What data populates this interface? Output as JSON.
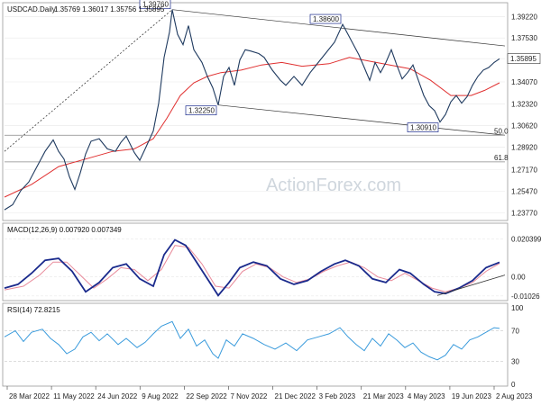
{
  "chart_data": {
    "type": "line",
    "symbol": "USDCAD",
    "timeframe": "Daily",
    "header": {
      "instrument": "USDCAD.Daily",
      "ohlc": "1.35769 1.36017 1.35756 1.35895"
    },
    "watermark": "ActionForex.com",
    "last_price_label": "1.35895",
    "x_axis": {
      "labels": [
        "28 Mar 2022",
        "11 May 2022",
        "24 Jun 2022",
        "9 Aug 2022",
        "22 Sep 2022",
        "7 Nov 2022",
        "21 Dec 2022",
        "3 Feb 2023",
        "21 Mar 2023",
        "4 May 2023",
        "19 Jun 2023",
        "2 Aug 2023"
      ],
      "total_bars": 370
    },
    "price_panel": {
      "y_ticks": [
        "1.39220",
        "1.37530",
        "1.35895",
        "1.34070",
        "1.32320",
        "1.30620",
        "1.28920",
        "1.27170",
        "1.25470",
        "1.23770"
      ],
      "ylim": [
        1.233,
        1.3995
      ],
      "annotations": [
        {
          "text": "1.39760",
          "bar": 124,
          "price": 1.3976
        },
        {
          "text": "1.38600",
          "bar": 250,
          "price": 1.386
        },
        {
          "text": "1.32250",
          "bar": 158,
          "price": 1.3225
        },
        {
          "text": "1.30910",
          "bar": 322,
          "price": 1.3091
        }
      ],
      "fib_levels": [
        {
          "text": "50.0",
          "price": 1.2987
        },
        {
          "text": "61.8",
          "price": 1.2777
        }
      ],
      "price_path": [
        [
          0,
          1.24
        ],
        [
          6,
          1.244
        ],
        [
          12,
          1.255
        ],
        [
          18,
          1.262
        ],
        [
          24,
          1.274
        ],
        [
          30,
          1.286
        ],
        [
          36,
          1.295
        ],
        [
          40,
          1.286
        ],
        [
          44,
          1.28
        ],
        [
          48,
          1.266
        ],
        [
          52,
          1.256
        ],
        [
          56,
          1.269
        ],
        [
          60,
          1.284
        ],
        [
          64,
          1.294
        ],
        [
          70,
          1.296
        ],
        [
          76,
          1.288
        ],
        [
          82,
          1.286
        ],
        [
          86,
          1.293
        ],
        [
          90,
          1.298
        ],
        [
          96,
          1.285
        ],
        [
          100,
          1.279
        ],
        [
          104,
          1.288
        ],
        [
          110,
          1.302
        ],
        [
          114,
          1.324
        ],
        [
          118,
          1.36
        ],
        [
          122,
          1.38
        ],
        [
          124,
          1.3976
        ],
        [
          128,
          1.378
        ],
        [
          132,
          1.37
        ],
        [
          136,
          1.385
        ],
        [
          140,
          1.366
        ],
        [
          146,
          1.356
        ],
        [
          150,
          1.345
        ],
        [
          154,
          1.336
        ],
        [
          158,
          1.3225
        ],
        [
          162,
          1.345
        ],
        [
          166,
          1.352
        ],
        [
          170,
          1.338
        ],
        [
          174,
          1.358
        ],
        [
          178,
          1.366
        ],
        [
          182,
          1.365
        ],
        [
          188,
          1.363
        ],
        [
          192,
          1.36
        ],
        [
          198,
          1.35
        ],
        [
          204,
          1.342
        ],
        [
          208,
          1.338
        ],
        [
          214,
          1.345
        ],
        [
          220,
          1.338
        ],
        [
          226,
          1.348
        ],
        [
          232,
          1.356
        ],
        [
          238,
          1.364
        ],
        [
          244,
          1.372
        ],
        [
          250,
          1.386
        ],
        [
          254,
          1.378
        ],
        [
          258,
          1.37
        ],
        [
          262,
          1.362
        ],
        [
          266,
          1.352
        ],
        [
          270,
          1.342
        ],
        [
          274,
          1.356
        ],
        [
          278,
          1.348
        ],
        [
          282,
          1.356
        ],
        [
          286,
          1.366
        ],
        [
          290,
          1.354
        ],
        [
          294,
          1.343
        ],
        [
          298,
          1.348
        ],
        [
          302,
          1.354
        ],
        [
          306,
          1.342
        ],
        [
          310,
          1.33
        ],
        [
          314,
          1.322
        ],
        [
          318,
          1.318
        ],
        [
          322,
          1.3091
        ],
        [
          326,
          1.315
        ],
        [
          330,
          1.325
        ],
        [
          334,
          1.33
        ],
        [
          338,
          1.324
        ],
        [
          342,
          1.329
        ],
        [
          346,
          1.338
        ],
        [
          350,
          1.345
        ],
        [
          354,
          1.35
        ],
        [
          358,
          1.352
        ],
        [
          362,
          1.356
        ],
        [
          366,
          1.3589
        ]
      ],
      "ma_path": [
        [
          0,
          1.25
        ],
        [
          20,
          1.26
        ],
        [
          40,
          1.274
        ],
        [
          60,
          1.28
        ],
        [
          80,
          1.286
        ],
        [
          96,
          1.288
        ],
        [
          110,
          1.296
        ],
        [
          120,
          1.312
        ],
        [
          130,
          1.33
        ],
        [
          140,
          1.34
        ],
        [
          150,
          1.345
        ],
        [
          160,
          1.348
        ],
        [
          175,
          1.35
        ],
        [
          190,
          1.354
        ],
        [
          205,
          1.356
        ],
        [
          220,
          1.353
        ],
        [
          240,
          1.355
        ],
        [
          255,
          1.36
        ],
        [
          270,
          1.357
        ],
        [
          285,
          1.354
        ],
        [
          300,
          1.351
        ],
        [
          315,
          1.342
        ],
        [
          330,
          1.33
        ],
        [
          345,
          1.33
        ],
        [
          355,
          1.334
        ],
        [
          366,
          1.34
        ]
      ],
      "channel_lines": [
        {
          "from": [
            124,
            1.3976
          ],
          "to": [
            370,
            1.369
          ]
        },
        {
          "from": [
            158,
            1.3225
          ],
          "to": [
            370,
            1.2987
          ]
        }
      ],
      "trend_line": {
        "from": [
          0,
          1.286
        ],
        "to": [
          124,
          1.3976
        ]
      }
    },
    "macd_panel": {
      "title": "MACD(12,26,9) 0.007920 0.007349",
      "y_ticks": [
        "0.020399",
        "0.00",
        "-0.01026"
      ],
      "ylim": [
        -0.0118,
        0.0222
      ],
      "macd_path": [
        [
          0,
          -0.006
        ],
        [
          10,
          -0.004
        ],
        [
          20,
          0.002
        ],
        [
          30,
          0.009
        ],
        [
          40,
          0.01
        ],
        [
          50,
          0.003
        ],
        [
          60,
          -0.008
        ],
        [
          70,
          -0.003
        ],
        [
          80,
          0.005
        ],
        [
          90,
          0.007
        ],
        [
          100,
          -0.001
        ],
        [
          110,
          -0.005
        ],
        [
          118,
          0.012
        ],
        [
          126,
          0.02
        ],
        [
          134,
          0.017
        ],
        [
          142,
          0.008
        ],
        [
          150,
          -0.001
        ],
        [
          158,
          -0.01
        ],
        [
          166,
          -0.003
        ],
        [
          174,
          0.005
        ],
        [
          184,
          0.008
        ],
        [
          194,
          0.006
        ],
        [
          204,
          -0.001
        ],
        [
          214,
          -0.004
        ],
        [
          224,
          -0.002
        ],
        [
          234,
          0.003
        ],
        [
          244,
          0.007
        ],
        [
          252,
          0.009
        ],
        [
          262,
          0.006
        ],
        [
          272,
          -0.001
        ],
        [
          282,
          -0.003
        ],
        [
          292,
          0.004
        ],
        [
          300,
          0.002
        ],
        [
          310,
          -0.004
        ],
        [
          318,
          -0.008
        ],
        [
          326,
          -0.009
        ],
        [
          336,
          -0.006
        ],
        [
          346,
          -0.002
        ],
        [
          356,
          0.005
        ],
        [
          366,
          0.0079
        ]
      ],
      "signal_path": [
        [
          0,
          -0.007
        ],
        [
          14,
          -0.005
        ],
        [
          26,
          0.001
        ],
        [
          36,
          0.008
        ],
        [
          46,
          0.008
        ],
        [
          56,
          0.001
        ],
        [
          66,
          -0.006
        ],
        [
          76,
          -0.001
        ],
        [
          86,
          0.005
        ],
        [
          96,
          0.004
        ],
        [
          106,
          -0.002
        ],
        [
          116,
          0.004
        ],
        [
          126,
          0.017
        ],
        [
          136,
          0.016
        ],
        [
          146,
          0.007
        ],
        [
          156,
          -0.005
        ],
        [
          166,
          -0.006
        ],
        [
          176,
          0.003
        ],
        [
          186,
          0.007
        ],
        [
          196,
          0.005
        ],
        [
          206,
          0.0
        ],
        [
          216,
          -0.003
        ],
        [
          226,
          -0.001
        ],
        [
          236,
          0.003
        ],
        [
          246,
          0.006
        ],
        [
          256,
          0.008
        ],
        [
          266,
          0.005
        ],
        [
          276,
          0.0
        ],
        [
          286,
          -0.002
        ],
        [
          296,
          0.002
        ],
        [
          306,
          -0.002
        ],
        [
          316,
          -0.006
        ],
        [
          326,
          -0.008
        ],
        [
          336,
          -0.006
        ],
        [
          346,
          -0.003
        ],
        [
          356,
          0.003
        ],
        [
          366,
          0.0073
        ]
      ],
      "trend_line": {
        "from": [
          320,
          -0.01
        ],
        "to": [
          370,
          0.001
        ]
      }
    },
    "rsi_panel": {
      "title": "RSI(14) 72.8215",
      "y_ticks": [
        "100",
        "70",
        "30",
        "0"
      ],
      "levels": [
        70,
        30
      ],
      "ylim": [
        0,
        100
      ],
      "rsi_path": [
        [
          0,
          62
        ],
        [
          8,
          70
        ],
        [
          14,
          56
        ],
        [
          20,
          68
        ],
        [
          28,
          72
        ],
        [
          34,
          60
        ],
        [
          40,
          52
        ],
        [
          46,
          40
        ],
        [
          52,
          46
        ],
        [
          58,
          62
        ],
        [
          64,
          68
        ],
        [
          70,
          57
        ],
        [
          76,
          66
        ],
        [
          84,
          52
        ],
        [
          90,
          60
        ],
        [
          98,
          48
        ],
        [
          104,
          55
        ],
        [
          110,
          66
        ],
        [
          116,
          76
        ],
        [
          124,
          82
        ],
        [
          130,
          60
        ],
        [
          136,
          72
        ],
        [
          142,
          50
        ],
        [
          148,
          58
        ],
        [
          154,
          40
        ],
        [
          158,
          34
        ],
        [
          164,
          58
        ],
        [
          170,
          50
        ],
        [
          176,
          66
        ],
        [
          184,
          60
        ],
        [
          192,
          52
        ],
        [
          200,
          46
        ],
        [
          208,
          54
        ],
        [
          216,
          44
        ],
        [
          224,
          58
        ],
        [
          232,
          62
        ],
        [
          240,
          66
        ],
        [
          248,
          74
        ],
        [
          254,
          62
        ],
        [
          260,
          52
        ],
        [
          266,
          44
        ],
        [
          272,
          60
        ],
        [
          278,
          50
        ],
        [
          284,
          66
        ],
        [
          290,
          58
        ],
        [
          296,
          48
        ],
        [
          302,
          54
        ],
        [
          308,
          42
        ],
        [
          314,
          36
        ],
        [
          320,
          32
        ],
        [
          326,
          38
        ],
        [
          332,
          52
        ],
        [
          338,
          46
        ],
        [
          344,
          58
        ],
        [
          350,
          62
        ],
        [
          356,
          68
        ],
        [
          362,
          74
        ],
        [
          366,
          73
        ]
      ]
    },
    "colors": {
      "price": "#1f3a5f",
      "ma": "#e03030",
      "macd": "#1a2a8c",
      "signal": "#e88a9a",
      "rsi": "#3a9bdc",
      "grid": "#e8e8e8",
      "level": "#888888"
    }
  }
}
